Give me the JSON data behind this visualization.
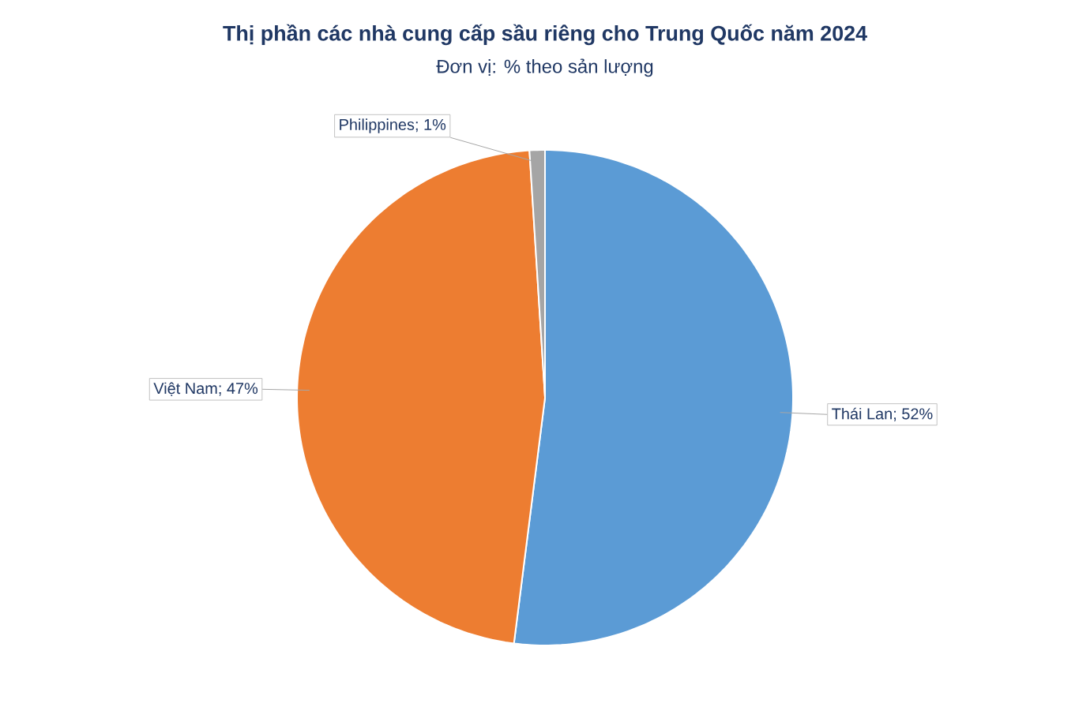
{
  "chart_data": {
    "type": "pie",
    "title": "Thị phần các nhà cung cấp sầu riêng cho Trung Quốc năm 2024",
    "subtitle": "Đơn vị: % theo sản lượng",
    "categories": [
      "Thái Lan",
      "Việt Nam",
      "Philippines"
    ],
    "values": [
      52,
      47,
      1
    ],
    "value_labels": [
      "; 52%",
      "; 47%",
      "; 1%"
    ],
    "colors": [
      "#5b9bd5",
      "#ed7d31",
      "#a5a5a5"
    ]
  }
}
